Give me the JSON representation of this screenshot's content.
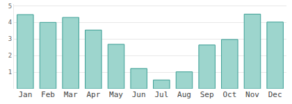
{
  "chart_data": {
    "type": "bar",
    "categories": [
      "Jan",
      "Feb",
      "Mar",
      "Apr",
      "May",
      "Jun",
      "Jul",
      "Aug",
      "Sep",
      "Oct",
      "Nov",
      "Dec"
    ],
    "values": [
      4.47,
      4.0,
      4.3,
      3.54,
      2.68,
      1.22,
      0.53,
      1.02,
      2.64,
      2.97,
      4.5,
      4.02
    ],
    "color": "#9dd5cd",
    "ylim": [
      0,
      5.1
    ],
    "yticks": [
      1,
      2,
      3,
      4,
      5
    ],
    "grid": true
  }
}
